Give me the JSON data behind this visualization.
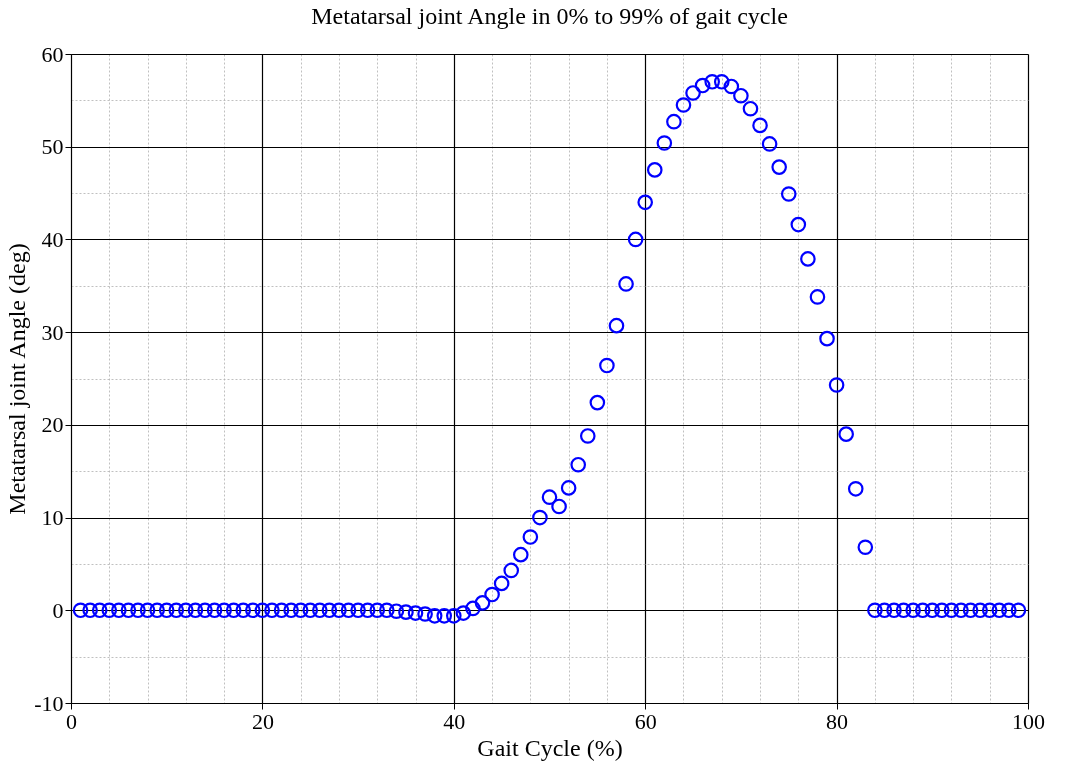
{
  "chart_data": {
    "type": "scatter",
    "title": "Metatarsal joint Angle in 0% to 99% of gait cycle",
    "xlabel": "Gait Cycle (%)",
    "ylabel": "Metatarsal joint Angle (deg)",
    "x": [
      1,
      2,
      3,
      4,
      5,
      6,
      7,
      8,
      9,
      10,
      11,
      12,
      13,
      14,
      15,
      16,
      17,
      18,
      19,
      20,
      21,
      22,
      23,
      24,
      25,
      26,
      27,
      28,
      29,
      30,
      31,
      32,
      33,
      34,
      35,
      36,
      37,
      38,
      39,
      40,
      41,
      42,
      43,
      44,
      45,
      46,
      47,
      48,
      49,
      50,
      51,
      52,
      53,
      54,
      55,
      56,
      57,
      58,
      59,
      60,
      61,
      62,
      63,
      64,
      65,
      66,
      67,
      68,
      69,
      70,
      71,
      72,
      73,
      74,
      75,
      76,
      77,
      78,
      79,
      80,
      81,
      82,
      83,
      84,
      85,
      86,
      87,
      88,
      89,
      90,
      91,
      92,
      93,
      94,
      95,
      96,
      97,
      98,
      99
    ],
    "series": [
      {
        "color": "#0000ff",
        "values": [
          0,
          0,
          0,
          0,
          0,
          0,
          0,
          0,
          0,
          0,
          0,
          0,
          0,
          0,
          0,
          0,
          0,
          0,
          0,
          0,
          0,
          0,
          0,
          0,
          0,
          0,
          0,
          0,
          0,
          0,
          0,
          0,
          0,
          -0.1,
          -0.2,
          -0.3,
          -0.4,
          -0.6,
          -0.6,
          -0.6,
          -0.3,
          0.2,
          0.8,
          1.7,
          2.9,
          4.3,
          6.0,
          7.9,
          10.0,
          12.2,
          11.2,
          13.2,
          15.7,
          18.8,
          22.4,
          26.4,
          30.7,
          35.2,
          40.0,
          44.0,
          47.5,
          50.4,
          52.7,
          54.5,
          55.8,
          56.6,
          57.0,
          57.0,
          56.5,
          55.5,
          54.1,
          52.3,
          50.3,
          47.8,
          44.9,
          41.6,
          37.9,
          33.8,
          29.3,
          24.3,
          19.0,
          13.1,
          6.8,
          0,
          0,
          0,
          0,
          0,
          0,
          0,
          0,
          0,
          0,
          0,
          0,
          0,
          0,
          0,
          0
        ]
      }
    ],
    "xlim": [
      0,
      100
    ],
    "ylim": [
      -10,
      60
    ],
    "xticks": [
      0,
      {
        "value": 4,
        "label": null
      },
      {
        "value": 8,
        "label": null
      },
      {
        "value": 12,
        "label": null
      },
      {
        "value": 16,
        "label": null
      },
      20,
      {
        "value": 24,
        "label": null
      },
      {
        "value": 28,
        "label": null
      },
      {
        "value": 32,
        "label": null
      },
      {
        "value": 36,
        "label": null
      },
      40,
      {
        "value": 44,
        "label": null
      },
      {
        "value": 48,
        "label": null
      },
      {
        "value": 52,
        "label": null
      },
      {
        "value": 56,
        "label": null
      },
      60,
      {
        "value": 64,
        "label": null
      },
      {
        "value": 68,
        "label": null
      },
      {
        "value": 72,
        "label": null
      },
      {
        "value": 76,
        "label": null
      },
      80,
      {
        "value": 84,
        "label": null
      },
      {
        "value": 88,
        "label": null
      },
      {
        "value": 92,
        "label": null
      },
      {
        "value": 96,
        "label": null
      },
      100
    ],
    "yticks": [
      -10,
      {
        "value": -5,
        "label": null
      },
      0,
      {
        "value": 5,
        "label": null
      },
      10,
      {
        "value": 15,
        "label": null
      },
      20,
      {
        "value": 25,
        "label": null
      },
      30,
      {
        "value": 35,
        "label": null
      },
      40,
      {
        "value": 45,
        "label": null
      },
      50,
      {
        "value": 55,
        "label": null
      },
      60
    ],
    "grid": true,
    "marker": "circle"
  }
}
